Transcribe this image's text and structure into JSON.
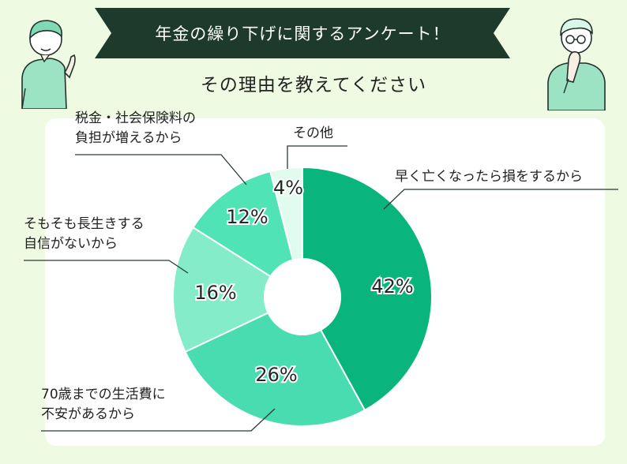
{
  "header": {
    "title": "年金の繰り下げに関するアンケート！",
    "subtitle": "その理由を教えてください"
  },
  "chart_data": {
    "type": "pie",
    "title": "その理由を教えてください",
    "donut": true,
    "value_suffix": "%",
    "slices": [
      {
        "label": "早く亡くなったら損をするから",
        "value": 42,
        "color": "#0ab57d"
      },
      {
        "label": "70歳までの生活費に不安があるから",
        "value": 26,
        "color": "#49dcb1"
      },
      {
        "label": "そもそも長生きする自信がないから",
        "value": 16,
        "color": "#84ecc8"
      },
      {
        "label": "税金・社会保険料の負担が増えるから",
        "value": 12,
        "color": "#4fe3b6"
      },
      {
        "label": "その他",
        "value": 4,
        "color": "#e1fbef"
      }
    ],
    "callouts": [
      {
        "lines": [
          "早く亡くなったら損をするから"
        ]
      },
      {
        "lines": [
          "70歳までの生活費に",
          "不安があるから"
        ]
      },
      {
        "lines": [
          "そもそも長生きする",
          "自信がないから"
        ]
      },
      {
        "lines": [
          "税金・社会保険料の",
          "負担が増えるから"
        ]
      },
      {
        "lines": [
          "その他"
        ]
      }
    ]
  },
  "illustrations": {
    "left_person": "pointing-person-icon",
    "right_person": "thinking-person-icon"
  }
}
